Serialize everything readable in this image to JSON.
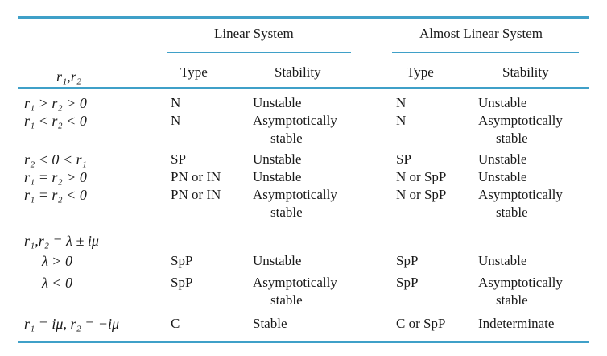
{
  "header": {
    "group_linear": "Linear System",
    "group_almost": "Almost Linear System",
    "col_roots": "r₁,r₂",
    "col_type": "Type",
    "col_stability": "Stability"
  },
  "rows": [
    {
      "roots": "r₁ > r₂ > 0",
      "lin_type": "N",
      "lin_stab": "Unstable",
      "lin_stab2": "",
      "alm_type": "N",
      "alm_stab": "Unstable",
      "alm_stab2": ""
    },
    {
      "roots": "r₁ < r₂ < 0",
      "lin_type": "N",
      "lin_stab": "Asymptotically",
      "lin_stab2": "stable",
      "alm_type": "N",
      "alm_stab": "Asymptotically",
      "alm_stab2": "stable"
    },
    {
      "roots": "r₂ < 0 < r₁",
      "lin_type": "SP",
      "lin_stab": "Unstable",
      "lin_stab2": "",
      "alm_type": "SP",
      "alm_stab": "Unstable",
      "alm_stab2": ""
    },
    {
      "roots": "r₁ = r₂ > 0",
      "lin_type": "PN or IN",
      "lin_stab": "Unstable",
      "lin_stab2": "",
      "alm_type": "N or SpP",
      "alm_stab": "Unstable",
      "alm_stab2": ""
    },
    {
      "roots": "r₁ = r₂ < 0",
      "lin_type": "PN or IN",
      "lin_stab": "Asymptotically",
      "lin_stab2": "stable",
      "alm_type": "N or SpP",
      "alm_stab": "Asymptotically",
      "alm_stab2": "stable"
    },
    {
      "roots": "r₁,r₂ = λ ± iμ",
      "lin_type": "",
      "lin_stab": "",
      "lin_stab2": "",
      "alm_type": "",
      "alm_stab": "",
      "alm_stab2": ""
    },
    {
      "roots": "λ > 0",
      "lin_type": "SpP",
      "lin_stab": "Unstable",
      "lin_stab2": "",
      "alm_type": "SpP",
      "alm_stab": "Unstable",
      "alm_stab2": ""
    },
    {
      "roots": "λ < 0",
      "lin_type": "SpP",
      "lin_stab": "Asymptotically",
      "lin_stab2": "stable",
      "alm_type": "SpP",
      "alm_stab": "Asymptotically",
      "alm_stab2": "stable"
    },
    {
      "roots": "r₁ = iμ, r₂ = −iμ",
      "lin_type": "C",
      "lin_stab": "Stable",
      "lin_stab2": "",
      "alm_type": "C or SpP",
      "alm_stab": "Indeterminate",
      "alm_stab2": ""
    }
  ],
  "colors": {
    "rule": "#3fa0c8",
    "text": "#1a1a1a"
  }
}
